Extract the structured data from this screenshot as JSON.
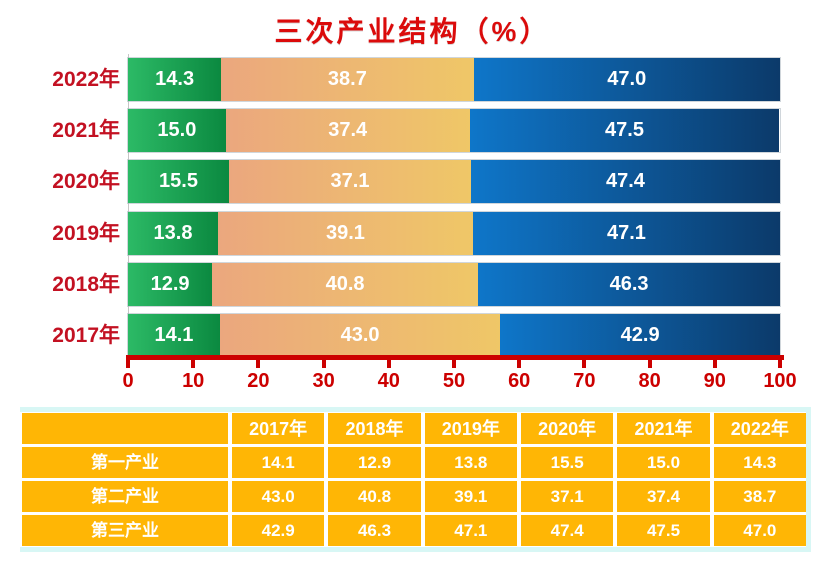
{
  "title": "三次产业结构（%）",
  "chart_data": {
    "type": "bar",
    "orientation": "horizontal-stacked",
    "title": "三次产业结构（%）",
    "categories": [
      "2017年",
      "2018年",
      "2019年",
      "2020年",
      "2021年",
      "2022年"
    ],
    "display_order": "newest-on-top",
    "series": [
      {
        "name": "第一产业",
        "values": [
          14.1,
          12.9,
          13.8,
          15.5,
          15.0,
          14.3
        ],
        "color_start": "#2CBA66",
        "color_end": "#0B8940"
      },
      {
        "name": "第二产业",
        "values": [
          43.0,
          40.8,
          39.1,
          37.1,
          37.4,
          38.7
        ],
        "color_start": "#EBA77E",
        "color_end": "#EFC767"
      },
      {
        "name": "第三产业",
        "values": [
          42.9,
          46.3,
          47.1,
          47.4,
          47.5,
          47.0
        ],
        "color_start": "#0E76C9",
        "color_end": "#0C3A6A"
      }
    ],
    "xlim": [
      0,
      100
    ],
    "xticks": [
      0,
      10,
      20,
      30,
      40,
      50,
      60,
      70,
      80,
      90,
      100
    ],
    "grid": false,
    "legend": "none",
    "value_label_format": "one-decimal",
    "value_label_color": "#FFFFFF"
  },
  "table": {
    "headers": [
      "",
      "2017年",
      "2018年",
      "2019年",
      "2020年",
      "2021年",
      "2022年"
    ],
    "rows": [
      {
        "label": "第一产业",
        "cells": [
          "14.1",
          "12.9",
          "13.8",
          "15.5",
          "15.0",
          "14.3"
        ]
      },
      {
        "label": "第二产业",
        "cells": [
          "43.0",
          "40.8",
          "39.1",
          "37.1",
          "37.4",
          "38.7"
        ]
      },
      {
        "label": "第三产业",
        "cells": [
          "42.9",
          "46.3",
          "47.1",
          "47.4",
          "47.5",
          "47.0"
        ]
      }
    ]
  },
  "colors": {
    "title_red": "#DB0B0B",
    "label_red": "#C31122",
    "axis_red": "#CC0000",
    "table_orange": "#FFB605",
    "table_text": "#FFFFFF",
    "cyan_frame": "#D8F7F5"
  }
}
